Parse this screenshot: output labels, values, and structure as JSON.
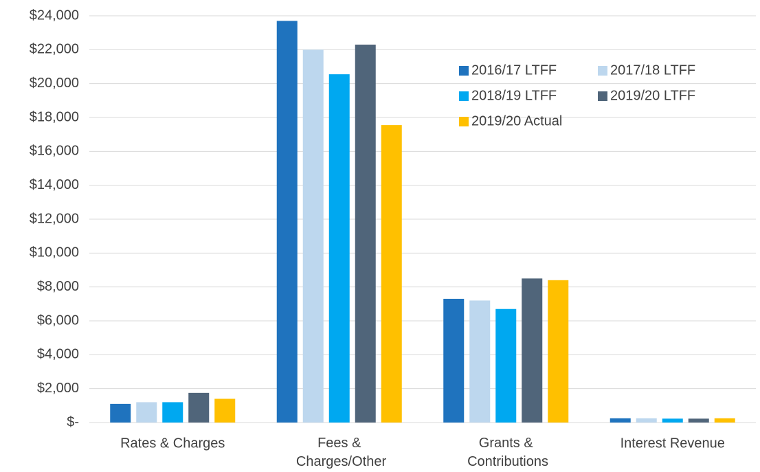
{
  "chart_data": {
    "type": "bar",
    "categories": [
      "Rates & Charges",
      "Fees & Charges/Other",
      "Grants & Contributions",
      "Interest Revenue"
    ],
    "series": [
      {
        "name": "2016/17 LTFF",
        "color": "#1f73be",
        "values": [
          1100,
          23700,
          7300,
          250
        ]
      },
      {
        "name": "2017/18 LTFF",
        "color": "#bdd7ee",
        "values": [
          1200,
          22000,
          7200,
          250
        ]
      },
      {
        "name": "2018/19 LTFF",
        "color": "#00a8f0",
        "values": [
          1200,
          20550,
          6700,
          230
        ]
      },
      {
        "name": "2019/20 LTFF",
        "color": "#50657a",
        "values": [
          1750,
          22300,
          8500,
          230
        ]
      },
      {
        "name": "2019/20 Actual",
        "color": "#ffc000",
        "values": [
          1400,
          17550,
          8400,
          250
        ]
      }
    ],
    "ylim": [
      0,
      24000
    ],
    "yticks": [
      {
        "value": 0,
        "label": "$-"
      },
      {
        "value": 2000,
        "label": "$2,000"
      },
      {
        "value": 4000,
        "label": "$4,000"
      },
      {
        "value": 6000,
        "label": "$6,000"
      },
      {
        "value": 8000,
        "label": "$8,000"
      },
      {
        "value": 10000,
        "label": "$10,000"
      },
      {
        "value": 12000,
        "label": "$12,000"
      },
      {
        "value": 14000,
        "label": "$14,000"
      },
      {
        "value": 16000,
        "label": "$16,000"
      },
      {
        "value": 18000,
        "label": "$18,000"
      },
      {
        "value": 20000,
        "label": "$20,000"
      },
      {
        "value": 22000,
        "label": "$22,000"
      },
      {
        "value": 24000,
        "label": "$24,000"
      }
    ],
    "grid": true,
    "legend": "upper right"
  }
}
